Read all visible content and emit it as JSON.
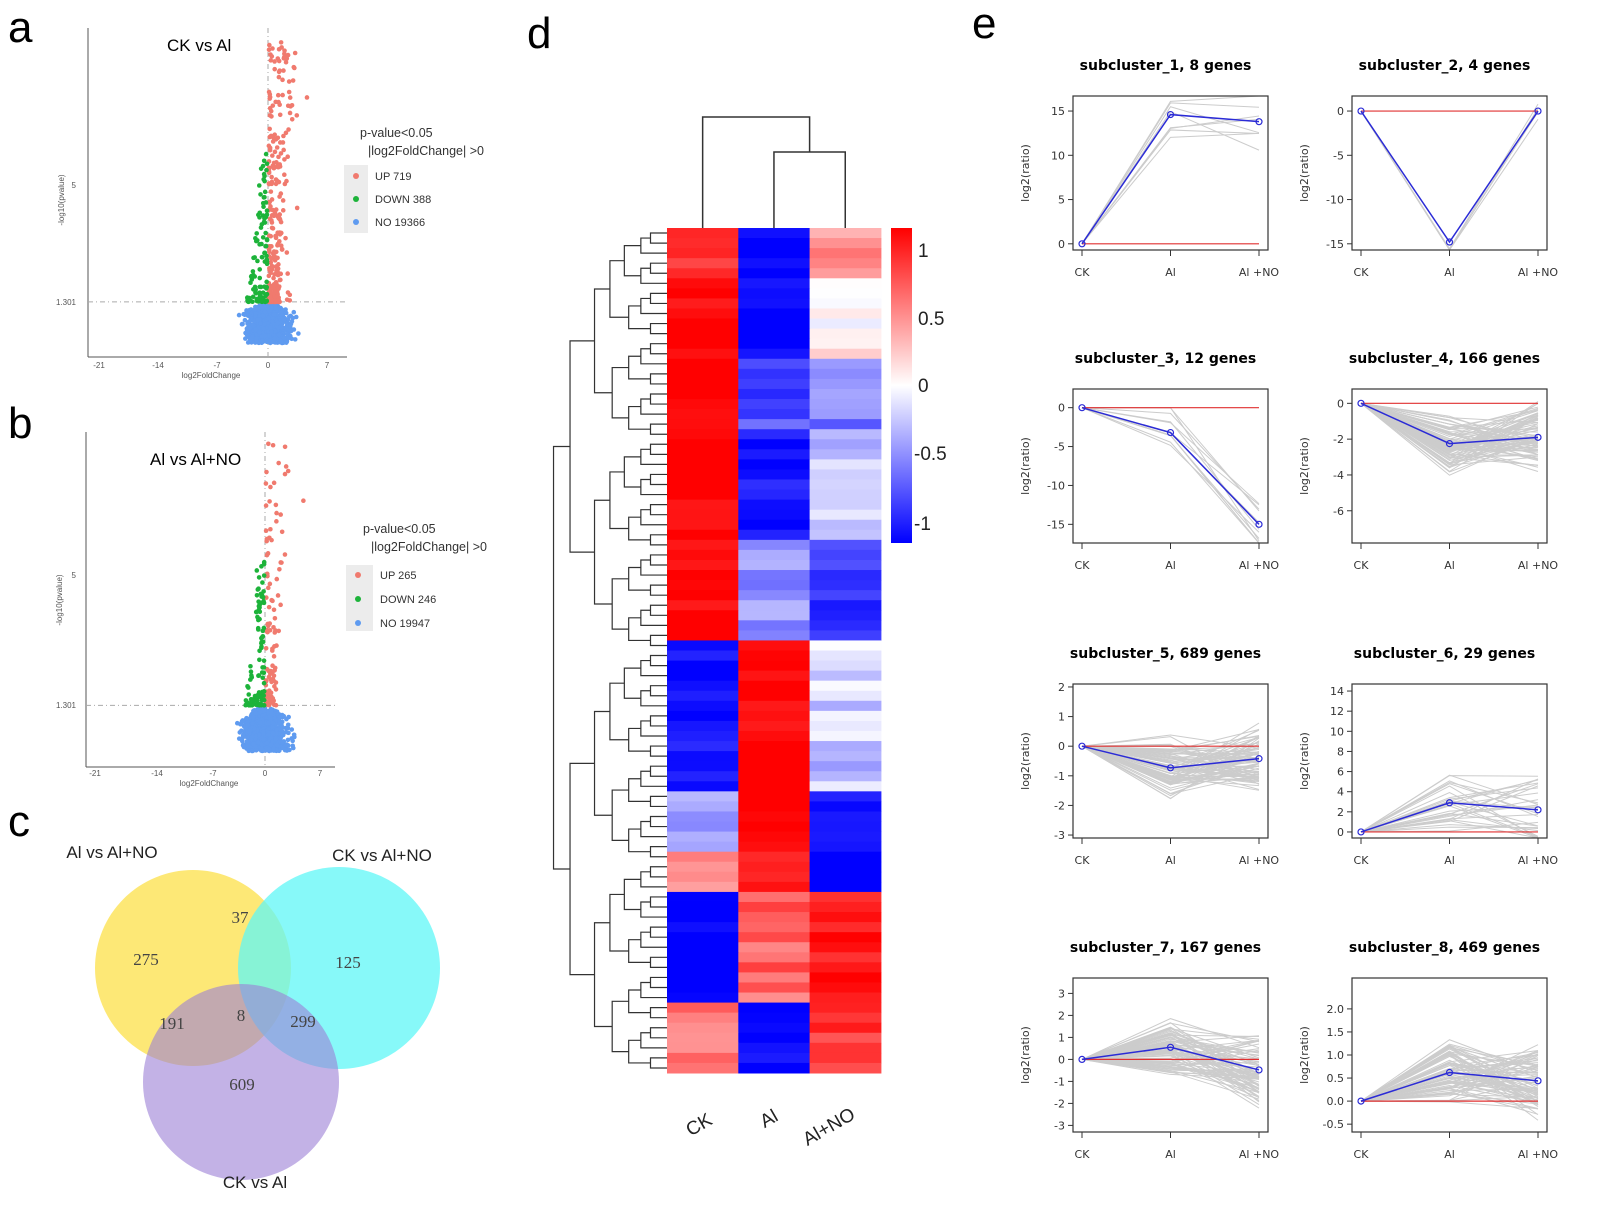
{
  "panel_labels": {
    "a": "a",
    "b": "b",
    "c": "c",
    "d": "d",
    "e": "e"
  },
  "colors": {
    "up": "#f07a6e",
    "down": "#1db33a",
    "no": "#5f9bf0",
    "venn_a": "#fde45e",
    "venn_b": "#5ff7f7",
    "venn_c": "#b496dc",
    "mean_line": "#2b2bd6",
    "ref_line": "#e03030",
    "gene_line": "#cccccc"
  },
  "chart_data": [
    {
      "type": "scatter",
      "id": "a",
      "title": "CK vs Al",
      "xlabel": "log2FoldChange",
      "ylabel": "-log10(pvalue)",
      "x_ticks": [
        "-21",
        "-14",
        "-7",
        "0",
        "7"
      ],
      "y_ticks": [
        "1.301",
        "5"
      ],
      "threshold_y": 1.301,
      "legend": {
        "title_1": "p-value<0.05",
        "title_2": "|log2FoldChange| >0",
        "items": [
          {
            "label": "UP 719",
            "key": "up"
          },
          {
            "label": "DOWN 388",
            "key": "down"
          },
          {
            "label": "NO 19366",
            "key": "no"
          }
        ]
      },
      "counts": {
        "up": 719,
        "down": 388,
        "no": 19366
      }
    },
    {
      "type": "scatter",
      "id": "b",
      "title": "Al vs Al+NO",
      "xlabel": "log2FoldChange",
      "ylabel": "-log10(pvalue)",
      "x_ticks": [
        "-21",
        "-14",
        "-7",
        "0",
        "7"
      ],
      "y_ticks": [
        "1.301",
        "5"
      ],
      "threshold_y": 1.301,
      "legend": {
        "title_1": "p-value<0.05",
        "title_2": "|log2FoldChange| >0",
        "items": [
          {
            "label": "UP 265",
            "key": "up"
          },
          {
            "label": "DOWN 246",
            "key": "down"
          },
          {
            "label": "NO 19947",
            "key": "no"
          }
        ]
      },
      "counts": {
        "up": 265,
        "down": 246,
        "no": 19947
      }
    },
    {
      "type": "venn",
      "id": "c",
      "sets": [
        "Al vs Al+NO",
        "CK vs Al+NO",
        "CK vs Al"
      ],
      "regions": {
        "only_AlvsAlNO": "275",
        "only_CKvsAlNO": "125",
        "only_CKvsAl": "609",
        "AlvsAlNO_CKvsAlNO": "37",
        "AlvsAlNO_CKvsAl": "191",
        "CKvsAlNO_CKvsAl": "299",
        "all": "8"
      }
    },
    {
      "type": "heatmap",
      "id": "d",
      "columns": [
        "CK",
        "Al",
        "Al+NO"
      ],
      "colorbar_ticks": [
        "1",
        "0.5",
        "0",
        "-0.5",
        "-1"
      ],
      "range": [
        -1,
        1
      ],
      "row_blocks": [
        {
          "rows": 5,
          "values": [
            0.8,
            -1,
            0.4
          ]
        },
        {
          "rows": 8,
          "values": [
            1,
            -1,
            0.1
          ]
        },
        {
          "rows": 7,
          "values": [
            1,
            -0.7,
            -0.5
          ]
        },
        {
          "rows": 11,
          "values": [
            1,
            -0.9,
            -0.2
          ]
        },
        {
          "rows": 10,
          "values": [
            1,
            -0.4,
            -0.8
          ]
        },
        {
          "rows": 15,
          "values": [
            -0.9,
            1,
            -0.2
          ]
        },
        {
          "rows": 6,
          "values": [
            -0.3,
            1,
            -0.9
          ]
        },
        {
          "rows": 4,
          "values": [
            0.5,
            0.8,
            -1
          ]
        },
        {
          "rows": 11,
          "values": [
            -1,
            0.6,
            0.9
          ]
        },
        {
          "rows": 7,
          "values": [
            0.5,
            -1,
            0.8
          ]
        }
      ]
    },
    {
      "type": "line",
      "id": "e",
      "categories": [
        "CK",
        "Al",
        "Al +NO"
      ],
      "ylabel": "log2(ratio)",
      "subplots": [
        {
          "title": "subcluster_1, 8 genes",
          "genes": 8,
          "mean": [
            0,
            14.6,
            13.8
          ],
          "ylim": [
            -0.7,
            16.7
          ],
          "ticks": [
            "0",
            "5",
            "10",
            "15"
          ]
        },
        {
          "title": "subcluster_2, 4 genes",
          "genes": 4,
          "mean": [
            0,
            -14.8,
            0
          ],
          "ylim": [
            -15.7,
            1.7
          ],
          "ticks": [
            "-15",
            "-10",
            "-5",
            "0"
          ]
        },
        {
          "title": "subcluster_3, 12 genes",
          "genes": 12,
          "mean": [
            0,
            -3.2,
            -15
          ],
          "ylim": [
            -17.4,
            2.4
          ],
          "ticks": [
            "-15",
            "-10",
            "-5",
            "0"
          ]
        },
        {
          "title": "subcluster_4, 166 genes",
          "genes": 166,
          "mean": [
            0,
            -2.25,
            -1.9
          ],
          "ylim": [
            -7.8,
            0.8
          ],
          "ticks": [
            "-6",
            "-4",
            "-2",
            "0"
          ]
        },
        {
          "title": "subcluster_5, 689 genes",
          "genes": 689,
          "mean": [
            0,
            -0.73,
            -0.42
          ],
          "ylim": [
            -3.1,
            2.1
          ],
          "ticks": [
            "-3",
            "-2",
            "-1",
            "0",
            "1",
            "2"
          ]
        },
        {
          "title": "subcluster_6, 29 genes",
          "genes": 29,
          "mean": [
            0,
            2.9,
            2.2
          ],
          "ylim": [
            -0.6,
            14.7
          ],
          "ticks": [
            "0",
            "2",
            "4",
            "6",
            "8",
            "10",
            "12",
            "14"
          ]
        },
        {
          "title": "subcluster_7, 167 genes",
          "genes": 167,
          "mean": [
            0,
            0.55,
            -0.48
          ],
          "ylim": [
            -3.3,
            3.7
          ],
          "ticks": [
            "-3",
            "-2",
            "-1",
            "0",
            "1",
            "2",
            "3"
          ]
        },
        {
          "title": "subcluster_8, 469 genes",
          "genes": 469,
          "mean": [
            0,
            0.62,
            0.44
          ],
          "ylim": [
            -0.67,
            2.67
          ],
          "ticks": [
            "-0.5",
            "0.0",
            "0.5",
            "1.0",
            "1.5",
            "2.0"
          ]
        }
      ]
    }
  ]
}
